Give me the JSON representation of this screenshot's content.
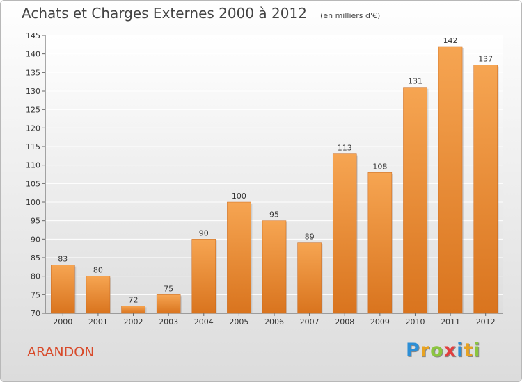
{
  "chart_data": {
    "type": "bar",
    "title": "Achats et Charges Externes 2000 à 2012",
    "subtitle": "(en milliers d'€)",
    "categories": [
      "2000",
      "2001",
      "2002",
      "2003",
      "2004",
      "2005",
      "2006",
      "2007",
      "2008",
      "2009",
      "2010",
      "2011",
      "2012"
    ],
    "values": [
      83,
      80,
      72,
      75,
      90,
      100,
      95,
      89,
      113,
      108,
      131,
      142,
      137
    ],
    "ylim": [
      70,
      145
    ],
    "yticks": [
      70,
      75,
      80,
      85,
      90,
      95,
      100,
      105,
      110,
      115,
      120,
      125,
      130,
      135,
      140,
      145
    ],
    "grid": true,
    "bar_color_top": "#f6a552",
    "bar_color_bottom": "#d9741e"
  },
  "footer": {
    "commune": "ARANDON",
    "logo_letters": [
      "P",
      "r",
      "o",
      "x",
      "i",
      "t",
      "i"
    ],
    "logo_colors": [
      "#2d8fd6",
      "#e8a321",
      "#8cc63f",
      "#e23f3f",
      "#2d8fd6",
      "#e8a321",
      "#8cc63f"
    ]
  }
}
